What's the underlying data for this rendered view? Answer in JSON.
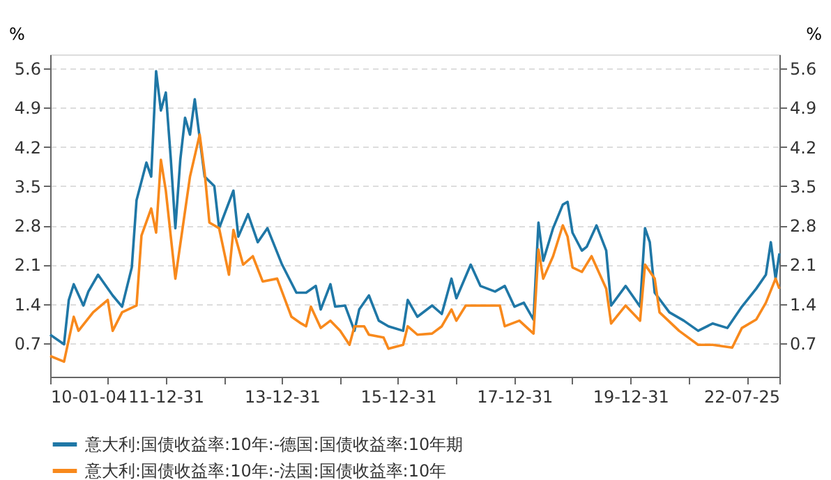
{
  "chart_data": {
    "type": "line",
    "ylabel": "%",
    "y2label": "%",
    "xlim": [
      "2010-01-04",
      "2022-07-25"
    ],
    "xticks": [
      {
        "value": "2010-01-04",
        "label": "10-01-04"
      },
      {
        "value": "2010-12-31",
        "label": null
      },
      {
        "value": "2011-12-31",
        "label": "11-12-31"
      },
      {
        "value": "2012-12-31",
        "label": null
      },
      {
        "value": "2013-12-31",
        "label": "13-12-31"
      },
      {
        "value": "2014-12-31",
        "label": null
      },
      {
        "value": "2015-12-31",
        "label": "15-12-31"
      },
      {
        "value": "2016-12-31",
        "label": null
      },
      {
        "value": "2017-12-31",
        "label": "17-12-31"
      },
      {
        "value": "2018-12-31",
        "label": null
      },
      {
        "value": "2019-12-31",
        "label": "19-12-31"
      },
      {
        "value": "2020-12-31",
        "label": null
      },
      {
        "value": "2021-12-31",
        "label": null
      },
      {
        "value": "2022-07-25",
        "label": "22-07-25"
      }
    ],
    "ylim": [
      0.1,
      5.85
    ],
    "yticks": [
      0.7,
      1.4,
      2.1,
      2.8,
      3.5,
      4.2,
      4.9,
      5.6
    ],
    "y2lim": [
      0.1,
      5.85
    ],
    "y2ticks": [
      0.7,
      1.4,
      2.1,
      2.8,
      3.5,
      4.2,
      4.9,
      5.6
    ],
    "grid": "y",
    "legend": "bottom",
    "series": [
      {
        "name": "意大利:国债收益率:10年:-德国:国债收益率:10年期",
        "color": "#1f77a6",
        "x": [
          "2010-01-04",
          "2010-04",
          "2010-05",
          "2010-06",
          "2010-08",
          "2010-09",
          "2010-11",
          "2011-02",
          "2011-04",
          "2011-06",
          "2011-07",
          "2011-09",
          "2011-10",
          "2011-11",
          "2011-12",
          "2012-01",
          "2012-02",
          "2012-03",
          "2012-04",
          "2012-05",
          "2012-06",
          "2012-07",
          "2012-09",
          "2012-11",
          "2012-12",
          "2013-03",
          "2013-04",
          "2013-06",
          "2013-08",
          "2013-10",
          "2014-01",
          "2014-04",
          "2014-06",
          "2014-08",
          "2014-09",
          "2014-11",
          "2014-12",
          "2015-02",
          "2015-04",
          "2015-05",
          "2015-07",
          "2015-09",
          "2015-11",
          "2016-02",
          "2016-03",
          "2016-05",
          "2016-08",
          "2016-10",
          "2016-12",
          "2017-01",
          "2017-04",
          "2017-06",
          "2017-09",
          "2017-11",
          "2018-01",
          "2018-03",
          "2018-05",
          "2018-06",
          "2018-07",
          "2018-09",
          "2018-11",
          "2018-12",
          "2019-01",
          "2019-03",
          "2019-04",
          "2019-06",
          "2019-08",
          "2019-09",
          "2019-12",
          "2020-03",
          "2020-04",
          "2020-05",
          "2020-06",
          "2020-09",
          "2020-12",
          "2021-03",
          "2021-06",
          "2021-09",
          "2021-12",
          "2022-03",
          "2022-05",
          "2022-06",
          "2022-07",
          "2022-07-25"
        ],
        "values": [
          0.85,
          0.68,
          1.47,
          1.75,
          1.37,
          1.62,
          1.92,
          1.55,
          1.35,
          2.05,
          3.25,
          3.92,
          3.67,
          5.55,
          4.85,
          5.17,
          4.0,
          2.75,
          3.97,
          4.72,
          4.42,
          5.05,
          3.67,
          3.5,
          2.75,
          3.42,
          2.6,
          3.0,
          2.5,
          2.75,
          2.1,
          1.6,
          1.6,
          1.72,
          1.3,
          1.75,
          1.35,
          1.37,
          0.92,
          1.3,
          1.55,
          1.1,
          1.0,
          0.92,
          1.47,
          1.17,
          1.37,
          1.22,
          1.85,
          1.5,
          2.1,
          1.72,
          1.62,
          1.72,
          1.35,
          1.42,
          1.12,
          2.85,
          2.17,
          2.75,
          3.17,
          3.22,
          2.67,
          2.35,
          2.42,
          2.8,
          2.35,
          1.37,
          1.72,
          1.35,
          2.75,
          2.5,
          1.6,
          1.25,
          1.1,
          0.92,
          1.05,
          0.97,
          1.35,
          1.67,
          1.92,
          2.5,
          1.85,
          2.3
        ]
      },
      {
        "name": "意大利:国债收益率:10年:-法国:国债收益率:10年",
        "color": "#f8891c",
        "x": [
          "2010-01-04",
          "2010-04",
          "2010-06",
          "2010-07",
          "2010-10",
          "2011-01",
          "2011-02",
          "2011-04",
          "2011-07",
          "2011-08",
          "2011-10",
          "2011-11",
          "2011-12",
          "2012-01",
          "2012-03",
          "2012-06",
          "2012-08",
          "2012-09",
          "2012-10",
          "2012-12",
          "2013-02",
          "2013-03",
          "2013-05",
          "2013-07",
          "2013-09",
          "2013-12",
          "2014-03",
          "2014-05",
          "2014-06",
          "2014-07",
          "2014-09",
          "2014-11",
          "2015-01",
          "2015-03",
          "2015-04",
          "2015-06",
          "2015-07",
          "2015-10",
          "2015-11",
          "2016-02",
          "2016-03",
          "2016-05",
          "2016-08",
          "2016-10",
          "2016-12",
          "2017-01",
          "2017-03",
          "2017-06",
          "2017-10",
          "2017-11",
          "2018-02",
          "2018-05",
          "2018-06",
          "2018-07",
          "2018-09",
          "2018-11",
          "2018-12",
          "2019-01",
          "2019-03",
          "2019-05",
          "2019-08",
          "2019-09",
          "2019-12",
          "2020-03",
          "2020-04",
          "2020-06",
          "2020-07",
          "2020-11",
          "2021-03",
          "2021-06",
          "2021-10",
          "2021-12",
          "2022-03",
          "2022-05",
          "2022-07",
          "2022-07-25"
        ],
        "values": [
          0.47,
          0.37,
          1.17,
          0.92,
          1.25,
          1.47,
          0.92,
          1.25,
          1.37,
          2.62,
          3.1,
          2.67,
          3.97,
          3.42,
          1.85,
          3.67,
          4.42,
          3.75,
          2.85,
          2.75,
          1.92,
          2.72,
          2.1,
          2.25,
          1.8,
          1.85,
          1.17,
          1.05,
          1.0,
          1.35,
          0.97,
          1.1,
          0.92,
          0.67,
          1.0,
          1.0,
          0.85,
          0.8,
          0.6,
          0.67,
          1.0,
          0.85,
          0.87,
          1.0,
          1.3,
          1.1,
          1.37,
          1.37,
          1.37,
          1.0,
          1.1,
          0.87,
          2.37,
          1.85,
          2.25,
          2.8,
          2.6,
          2.05,
          1.97,
          2.25,
          1.67,
          1.05,
          1.37,
          1.1,
          2.1,
          1.85,
          1.25,
          0.92,
          0.67,
          0.67,
          0.62,
          0.97,
          1.12,
          1.42,
          1.85,
          1.67
        ]
      }
    ]
  }
}
